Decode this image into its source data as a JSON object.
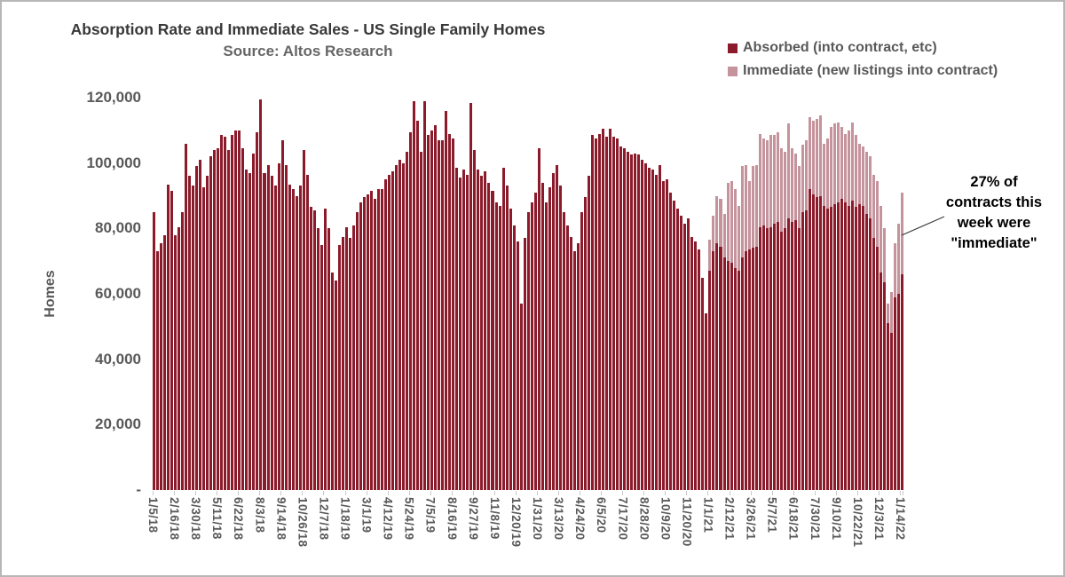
{
  "title": "Absorption Rate and Immediate Sales - US Single Family Homes",
  "subtitle": "Source: Altos Research",
  "legend": {
    "items": [
      {
        "label": "Absorbed (into contract, etc)",
        "color": "#8B1B2B"
      },
      {
        "label": "Immediate (new listings into contract)",
        "color": "#C5939C"
      }
    ]
  },
  "y_axis": {
    "title": "Homes",
    "ticks": [
      "120,000",
      "100,000",
      "80,000",
      "60,000",
      "40,000",
      "20,000",
      "-"
    ]
  },
  "annotation": {
    "text": "27% of\ncontracts this\nweek were\n\"immediate\""
  },
  "chart_data": {
    "type": "bar",
    "stacked": true,
    "title": "Absorption Rate and Immediate Sales - US Single Family Homes",
    "subtitle": "Source: Altos Research",
    "ylabel": "Homes",
    "ylim": [
      0,
      120000
    ],
    "grid": false,
    "legend_position": "top-right",
    "x_unit": "week",
    "x_range": "1/5/18 to 1/14/22 (211 weekly bars)",
    "label_every": 6,
    "x_tick_labels": [
      "1/5/18",
      "2/16/18",
      "3/30/18",
      "5/11/18",
      "6/22/18",
      "8/3/18",
      "9/14/18",
      "10/26/18",
      "12/7/18",
      "1/18/19",
      "3/1/19",
      "4/12/19",
      "5/24/19",
      "7/5/19",
      "8/16/19",
      "9/27/19",
      "11/8/19",
      "12/20/19",
      "1/31/20",
      "3/13/20",
      "4/24/20",
      "6/5/20",
      "7/17/20",
      "8/28/20",
      "10/9/20",
      "11/20/20",
      "1/1/21",
      "2/12/21",
      "3/26/21",
      "5/7/21",
      "6/18/21",
      "7/30/21",
      "9/10/21",
      "10/22/21",
      "12/3/21",
      "1/14/22"
    ],
    "series": [
      {
        "name": "Absorbed (into contract, etc)",
        "color": "#8B1B2B",
        "start_index": 0,
        "values": [
          85000,
          73000,
          75500,
          78000,
          93500,
          91500,
          78000,
          80500,
          85000,
          106000,
          96000,
          93000,
          99000,
          101000,
          92500,
          96000,
          102000,
          104000,
          104500,
          108500,
          108000,
          104000,
          108500,
          110000,
          110000,
          104500,
          98000,
          97000,
          103000,
          109500,
          119500,
          97000,
          99500,
          96000,
          93000,
          100000,
          107000,
          99500,
          93500,
          92000,
          90000,
          93000,
          104000,
          96500,
          86500,
          85500,
          80000,
          75000,
          86000,
          80000,
          66500,
          64000,
          75000,
          77500,
          80500,
          77000,
          81000,
          85000,
          88000,
          89500,
          90500,
          91500,
          89000,
          92000,
          92000,
          95000,
          96500,
          97500,
          99500,
          101000,
          100000,
          103500,
          109500,
          119000,
          113000,
          103500,
          119000,
          108500,
          110000,
          111500,
          107000,
          107000,
          116000,
          109000,
          107500,
          98500,
          95500,
          98000,
          96500,
          118500,
          104000,
          98000,
          96000,
          97500,
          94000,
          91500,
          88000,
          87000,
          98500,
          93000,
          86000,
          81000,
          76000,
          57000,
          77000,
          85000,
          88000,
          91000,
          104500,
          94000,
          88000,
          92500,
          97000,
          99500,
          93000,
          85000,
          81000,
          77500,
          73000,
          75500,
          85000,
          89500,
          96000,
          108500,
          107500,
          109000,
          110500,
          108000,
          110500,
          108000,
          107500,
          105000,
          104500,
          103500,
          102500,
          103000,
          102500,
          101000,
          100000,
          98500,
          98000,
          96500,
          99500,
          94500,
          95000,
          91000,
          88500,
          86000,
          84000,
          81500,
          83000,
          77500,
          76000,
          73500,
          65000,
          54000,
          67000,
          73000,
          75500,
          74500,
          71000,
          70000,
          69500,
          68000,
          67000,
          71000,
          73000,
          73500,
          74000,
          74500,
          80500,
          81000,
          80000,
          80500,
          81500,
          82000,
          79000,
          80000,
          83000,
          82000,
          82500,
          80000,
          85000,
          85500,
          92000,
          90500,
          89500,
          90000,
          87000,
          86000,
          86500,
          87500,
          88000,
          89000,
          88000,
          87000,
          88500,
          86500,
          87500,
          87000,
          84500,
          83000,
          77000,
          74500,
          66500,
          63500,
          51000,
          48000,
          59000,
          60000,
          66000
        ]
      },
      {
        "name": "Immediate (new listings into contract)",
        "color": "#C5939C",
        "note": "zero for all weeks before 1/1/21 (index 156)",
        "start_index": 156,
        "values": [
          9500,
          11000,
          14500,
          14500,
          13500,
          24000,
          25000,
          24000,
          20000,
          28000,
          26500,
          21000,
          25000,
          25000,
          28500,
          26500,
          27000,
          28000,
          27000,
          27500,
          25500,
          23500,
          29000,
          22500,
          20500,
          19000,
          20500,
          21500,
          22000,
          22500,
          24000,
          24500,
          19000,
          21500,
          24500,
          24500,
          24500,
          22000,
          21000,
          23000,
          24000,
          22000,
          18500,
          18000,
          19000,
          19000,
          19500,
          20000,
          20500,
          16500,
          6000,
          12500,
          16500,
          21500,
          25000
        ]
      }
    ],
    "annotation": {
      "text": "27% of contracts this week were \"immediate\"",
      "points_to": "1/14/22"
    }
  }
}
